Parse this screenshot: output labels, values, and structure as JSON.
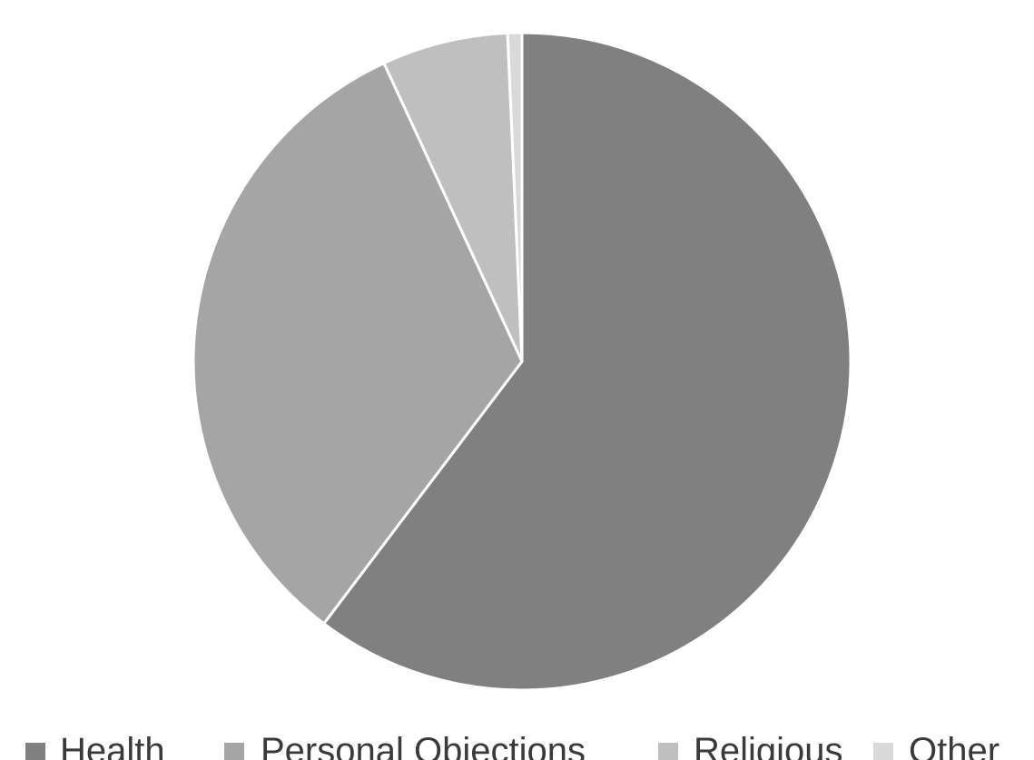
{
  "chart_data": {
    "type": "pie",
    "title": "",
    "categories": [
      "Health",
      "Personal Objections",
      "Religious",
      "Other"
    ],
    "values": [
      60.3,
      32.8,
      6.2,
      0.7
    ],
    "colors": [
      "#808080",
      "#a5a5a5",
      "#bfbfbf",
      "#d9d9d9"
    ],
    "start_angle_deg": 0,
    "direction": "clockwise",
    "legend_position": "bottom",
    "slice_border_color": "#ffffff"
  }
}
